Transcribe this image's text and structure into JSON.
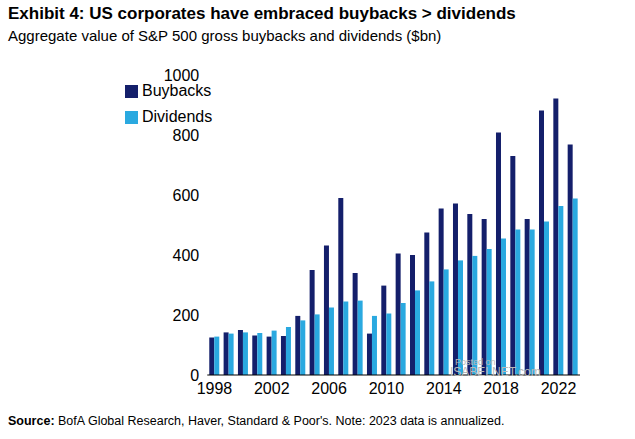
{
  "chart_data": {
    "type": "bar",
    "title": "Exhibit 4: US corporates have embraced buybacks > dividends",
    "subtitle": "Aggregate value of S&P 500 gross buybacks and dividends ($bn)",
    "categories": [
      "1998",
      null,
      null,
      null,
      "2002",
      null,
      null,
      null,
      "2006",
      null,
      null,
      null,
      "2010",
      null,
      null,
      null,
      "2014",
      null,
      null,
      null,
      "2018",
      null,
      null,
      null,
      "2022",
      null
    ],
    "series": [
      {
        "name": "Buybacks",
        "color": "#141f6b",
        "values": [
          125,
          142,
          150,
          132,
          128,
          130,
          197,
          350,
          432,
          590,
          340,
          138,
          298,
          405,
          400,
          475,
          555,
          572,
          537,
          520,
          808,
          730,
          520,
          882,
          922,
          768
        ]
      },
      {
        "name": "Dividends",
        "color": "#2aa9e0",
        "values": [
          128,
          138,
          142,
          140,
          148,
          160,
          182,
          202,
          225,
          245,
          248,
          197,
          205,
          240,
          282,
          312,
          352,
          382,
          397,
          420,
          455,
          485,
          485,
          512,
          563,
          588
        ]
      }
    ],
    "ylim": [
      0,
      1000
    ],
    "yticks": [
      0,
      200,
      400,
      600,
      800,
      1000
    ],
    "grid": false,
    "legend": "upper left",
    "note": {
      "label": "Source:",
      "text": "BofA Global Research, Haver, Standard & Poor's. Note: 2023 data is annualized."
    },
    "annotations": [
      "Posted on",
      "ISABELNET.com"
    ]
  }
}
